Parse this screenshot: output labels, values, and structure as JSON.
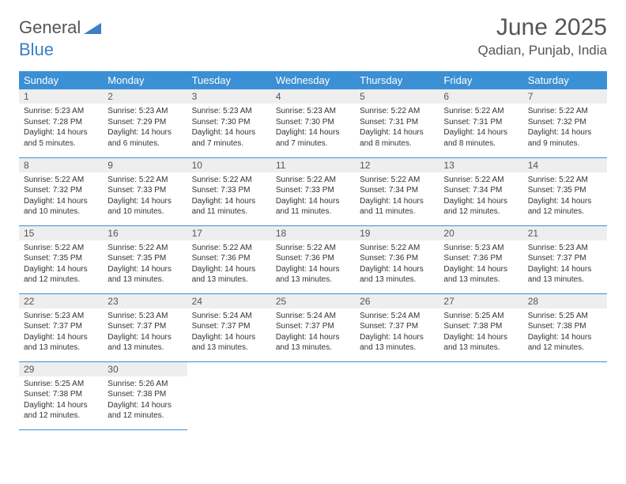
{
  "logo": {
    "text_general": "General",
    "text_blue": "Blue"
  },
  "header": {
    "month_year": "June 2025",
    "location": "Qadian, Punjab, India"
  },
  "colors": {
    "header_bg": "#3b8fd4",
    "header_text": "#ffffff",
    "daynum_bg": "#eeeeee",
    "border": "#3b8fd4",
    "title_text": "#555555",
    "body_text": "#333333"
  },
  "weekdays": [
    "Sunday",
    "Monday",
    "Tuesday",
    "Wednesday",
    "Thursday",
    "Friday",
    "Saturday"
  ],
  "weeks": [
    [
      {
        "day": "1",
        "sunrise": "Sunrise: 5:23 AM",
        "sunset": "Sunset: 7:28 PM",
        "daylight": "Daylight: 14 hours and 5 minutes."
      },
      {
        "day": "2",
        "sunrise": "Sunrise: 5:23 AM",
        "sunset": "Sunset: 7:29 PM",
        "daylight": "Daylight: 14 hours and 6 minutes."
      },
      {
        "day": "3",
        "sunrise": "Sunrise: 5:23 AM",
        "sunset": "Sunset: 7:30 PM",
        "daylight": "Daylight: 14 hours and 7 minutes."
      },
      {
        "day": "4",
        "sunrise": "Sunrise: 5:23 AM",
        "sunset": "Sunset: 7:30 PM",
        "daylight": "Daylight: 14 hours and 7 minutes."
      },
      {
        "day": "5",
        "sunrise": "Sunrise: 5:22 AM",
        "sunset": "Sunset: 7:31 PM",
        "daylight": "Daylight: 14 hours and 8 minutes."
      },
      {
        "day": "6",
        "sunrise": "Sunrise: 5:22 AM",
        "sunset": "Sunset: 7:31 PM",
        "daylight": "Daylight: 14 hours and 8 minutes."
      },
      {
        "day": "7",
        "sunrise": "Sunrise: 5:22 AM",
        "sunset": "Sunset: 7:32 PM",
        "daylight": "Daylight: 14 hours and 9 minutes."
      }
    ],
    [
      {
        "day": "8",
        "sunrise": "Sunrise: 5:22 AM",
        "sunset": "Sunset: 7:32 PM",
        "daylight": "Daylight: 14 hours and 10 minutes."
      },
      {
        "day": "9",
        "sunrise": "Sunrise: 5:22 AM",
        "sunset": "Sunset: 7:33 PM",
        "daylight": "Daylight: 14 hours and 10 minutes."
      },
      {
        "day": "10",
        "sunrise": "Sunrise: 5:22 AM",
        "sunset": "Sunset: 7:33 PM",
        "daylight": "Daylight: 14 hours and 11 minutes."
      },
      {
        "day": "11",
        "sunrise": "Sunrise: 5:22 AM",
        "sunset": "Sunset: 7:33 PM",
        "daylight": "Daylight: 14 hours and 11 minutes."
      },
      {
        "day": "12",
        "sunrise": "Sunrise: 5:22 AM",
        "sunset": "Sunset: 7:34 PM",
        "daylight": "Daylight: 14 hours and 11 minutes."
      },
      {
        "day": "13",
        "sunrise": "Sunrise: 5:22 AM",
        "sunset": "Sunset: 7:34 PM",
        "daylight": "Daylight: 14 hours and 12 minutes."
      },
      {
        "day": "14",
        "sunrise": "Sunrise: 5:22 AM",
        "sunset": "Sunset: 7:35 PM",
        "daylight": "Daylight: 14 hours and 12 minutes."
      }
    ],
    [
      {
        "day": "15",
        "sunrise": "Sunrise: 5:22 AM",
        "sunset": "Sunset: 7:35 PM",
        "daylight": "Daylight: 14 hours and 12 minutes."
      },
      {
        "day": "16",
        "sunrise": "Sunrise: 5:22 AM",
        "sunset": "Sunset: 7:35 PM",
        "daylight": "Daylight: 14 hours and 13 minutes."
      },
      {
        "day": "17",
        "sunrise": "Sunrise: 5:22 AM",
        "sunset": "Sunset: 7:36 PM",
        "daylight": "Daylight: 14 hours and 13 minutes."
      },
      {
        "day": "18",
        "sunrise": "Sunrise: 5:22 AM",
        "sunset": "Sunset: 7:36 PM",
        "daylight": "Daylight: 14 hours and 13 minutes."
      },
      {
        "day": "19",
        "sunrise": "Sunrise: 5:22 AM",
        "sunset": "Sunset: 7:36 PM",
        "daylight": "Daylight: 14 hours and 13 minutes."
      },
      {
        "day": "20",
        "sunrise": "Sunrise: 5:23 AM",
        "sunset": "Sunset: 7:36 PM",
        "daylight": "Daylight: 14 hours and 13 minutes."
      },
      {
        "day": "21",
        "sunrise": "Sunrise: 5:23 AM",
        "sunset": "Sunset: 7:37 PM",
        "daylight": "Daylight: 14 hours and 13 minutes."
      }
    ],
    [
      {
        "day": "22",
        "sunrise": "Sunrise: 5:23 AM",
        "sunset": "Sunset: 7:37 PM",
        "daylight": "Daylight: 14 hours and 13 minutes."
      },
      {
        "day": "23",
        "sunrise": "Sunrise: 5:23 AM",
        "sunset": "Sunset: 7:37 PM",
        "daylight": "Daylight: 14 hours and 13 minutes."
      },
      {
        "day": "24",
        "sunrise": "Sunrise: 5:24 AM",
        "sunset": "Sunset: 7:37 PM",
        "daylight": "Daylight: 14 hours and 13 minutes."
      },
      {
        "day": "25",
        "sunrise": "Sunrise: 5:24 AM",
        "sunset": "Sunset: 7:37 PM",
        "daylight": "Daylight: 14 hours and 13 minutes."
      },
      {
        "day": "26",
        "sunrise": "Sunrise: 5:24 AM",
        "sunset": "Sunset: 7:37 PM",
        "daylight": "Daylight: 14 hours and 13 minutes."
      },
      {
        "day": "27",
        "sunrise": "Sunrise: 5:25 AM",
        "sunset": "Sunset: 7:38 PM",
        "daylight": "Daylight: 14 hours and 13 minutes."
      },
      {
        "day": "28",
        "sunrise": "Sunrise: 5:25 AM",
        "sunset": "Sunset: 7:38 PM",
        "daylight": "Daylight: 14 hours and 12 minutes."
      }
    ],
    [
      {
        "day": "29",
        "sunrise": "Sunrise: 5:25 AM",
        "sunset": "Sunset: 7:38 PM",
        "daylight": "Daylight: 14 hours and 12 minutes."
      },
      {
        "day": "30",
        "sunrise": "Sunrise: 5:26 AM",
        "sunset": "Sunset: 7:38 PM",
        "daylight": "Daylight: 14 hours and 12 minutes."
      },
      null,
      null,
      null,
      null,
      null
    ]
  ]
}
